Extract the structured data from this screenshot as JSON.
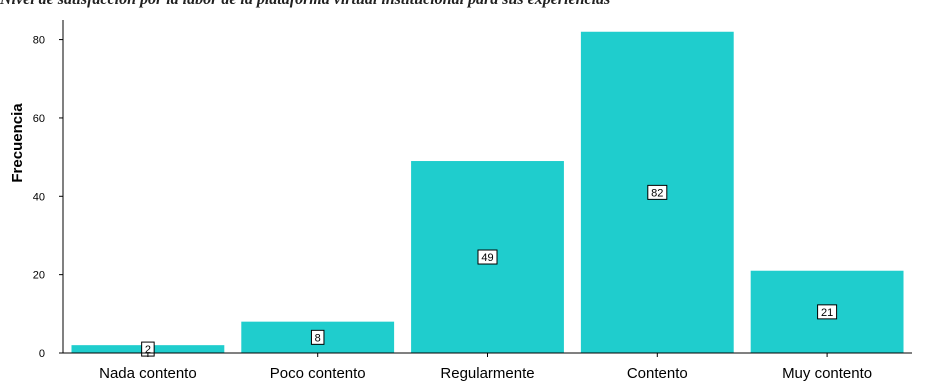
{
  "caption": "Nivel de satisfacción por la labor de la plataforma virtual institucional para sus experiencias",
  "chart_data": {
    "type": "bar",
    "categories": [
      "Nada contento",
      "Poco contento",
      "Regularmente",
      "Contento",
      "Muy contento"
    ],
    "values": [
      2,
      8,
      49,
      82,
      21
    ],
    "title": "",
    "xlabel": "",
    "ylabel": "Frecuencia",
    "ylim": [
      0,
      85
    ],
    "yticks": [
      0,
      20,
      40,
      60,
      80
    ],
    "bar_color": "#1fcdcd",
    "grid": false,
    "data_labels": true
  }
}
